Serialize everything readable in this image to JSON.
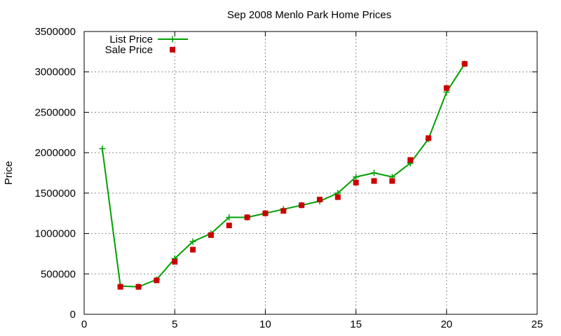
{
  "chart_data": {
    "type": "line",
    "title": "Sep 2008 Menlo Park Home Prices",
    "xlabel": "",
    "ylabel": "Price",
    "xlim": [
      0,
      25
    ],
    "ylim": [
      0,
      3500000
    ],
    "xticks": [
      0,
      5,
      10,
      15,
      20,
      25
    ],
    "yticks": [
      0,
      500000,
      1000000,
      1500000,
      2000000,
      2500000,
      3000000,
      3500000
    ],
    "grid": true,
    "legend_position": "top-left",
    "series": [
      {
        "name": "List Price",
        "style": "linespoints",
        "color": "#00a000",
        "marker": "plus",
        "x": [
          1,
          2,
          3,
          4,
          5,
          6,
          7,
          8,
          9,
          10,
          11,
          12,
          13,
          14,
          15,
          16,
          17,
          18,
          19,
          20,
          21
        ],
        "y": [
          2050000,
          350000,
          340000,
          430000,
          690000,
          900000,
          1000000,
          1200000,
          1200000,
          1250000,
          1300000,
          1350000,
          1400000,
          1500000,
          1700000,
          1750000,
          1700000,
          1870000,
          2170000,
          2750000,
          3100000
        ]
      },
      {
        "name": "Sale Price",
        "style": "points",
        "color": "#cc0000",
        "marker": "square",
        "x": [
          2,
          3,
          4,
          5,
          6,
          7,
          8,
          9,
          10,
          11,
          12,
          13,
          14,
          15,
          16,
          17,
          18,
          19,
          20,
          21
        ],
        "y": [
          340000,
          340000,
          420000,
          650000,
          800000,
          980000,
          1100000,
          1200000,
          1250000,
          1280000,
          1350000,
          1420000,
          1450000,
          1630000,
          1650000,
          1650000,
          1910000,
          2180000,
          2800000,
          3100000
        ]
      }
    ]
  }
}
